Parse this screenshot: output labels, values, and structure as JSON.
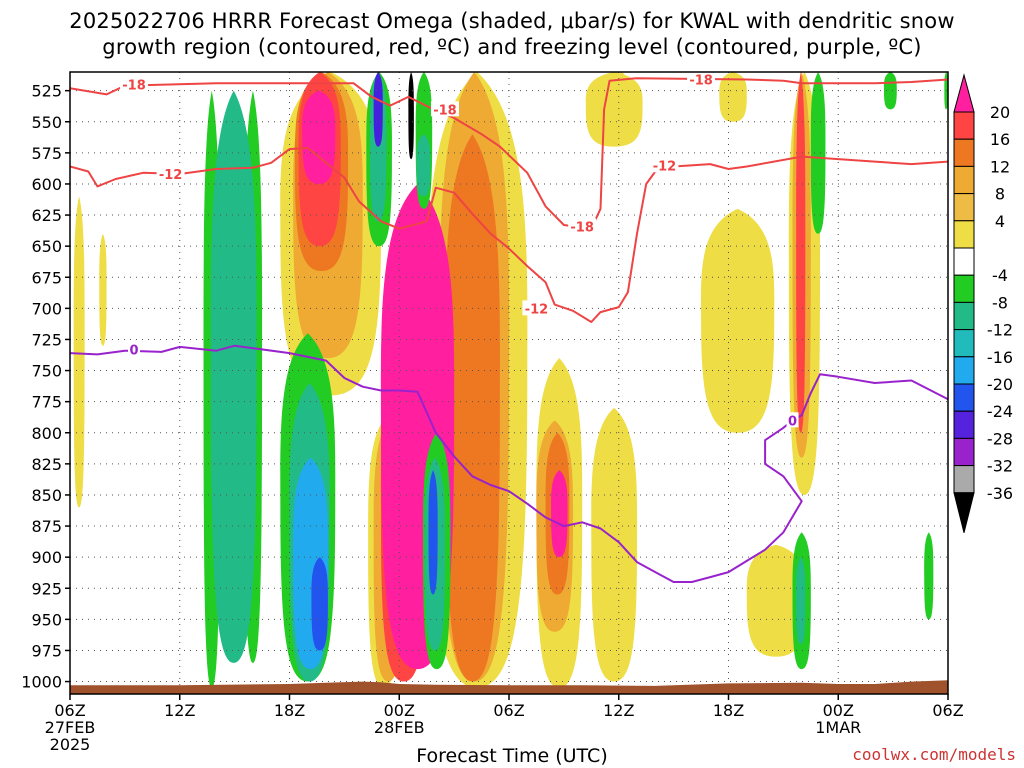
{
  "chart_data": {
    "type": "heatmap",
    "title_line1": "2025022706 HRRR Forecast Omega (shaded, μbar/s) for KWAL with dendritic snow",
    "title_line2": "growth region (contoured, red, ºC) and freezing level (contoured, purple, ºC)",
    "xlabel": "Forecast Time (UTC)",
    "credit": "coolwx.com/models",
    "y_axis": {
      "ticks": [
        525,
        550,
        575,
        600,
        625,
        650,
        675,
        700,
        725,
        750,
        775,
        800,
        825,
        850,
        875,
        900,
        925,
        950,
        975,
        1000
      ],
      "range": [
        510,
        1010
      ]
    },
    "x_axis": {
      "ticks": [
        {
          "h": 0,
          "lines": [
            "06Z",
            "27FEB",
            "2025"
          ]
        },
        {
          "h": 6,
          "lines": [
            "12Z"
          ]
        },
        {
          "h": 12,
          "lines": [
            "18Z"
          ]
        },
        {
          "h": 18,
          "lines": [
            "00Z",
            "28FEB"
          ]
        },
        {
          "h": 24,
          "lines": [
            "06Z"
          ]
        },
        {
          "h": 30,
          "lines": [
            "12Z"
          ]
        },
        {
          "h": 36,
          "lines": [
            "18Z"
          ]
        },
        {
          "h": 42,
          "lines": [
            "00Z",
            "1MAR"
          ]
        },
        {
          "h": 48,
          "lines": [
            "06Z"
          ]
        }
      ],
      "range_hours": [
        0,
        48
      ]
    },
    "colorbar": {
      "labels": [
        20,
        16,
        12,
        8,
        4,
        -4,
        -8,
        -12,
        -16,
        -20,
        -24,
        -28,
        -32,
        -36
      ],
      "colors": [
        "#ff3399",
        "#ff4444",
        "#ee7722",
        "#ee9933",
        "#eebb33",
        "#eedd44",
        "#ffffff",
        "#22cc22",
        "#22bb77",
        "#22bbbb",
        "#2299ee",
        "#2244dd",
        "#7722cc",
        "#aa22cc",
        "#aaaaaa",
        "#000000"
      ]
    },
    "series": [
      {
        "name": "-18",
        "color": "#ee4444",
        "points": [
          [
            0,
            523
          ],
          [
            2,
            528
          ],
          [
            3,
            521
          ],
          [
            8,
            519
          ],
          [
            14,
            519
          ],
          [
            15.5,
            519
          ],
          [
            16.5,
            530
          ],
          [
            17.5,
            537
          ],
          [
            18.5,
            530
          ],
          [
            20,
            541
          ],
          [
            21,
            547
          ],
          [
            22.5,
            560
          ],
          [
            23.5,
            570
          ],
          [
            25,
            591
          ],
          [
            26,
            618
          ],
          [
            27,
            633
          ],
          [
            28.5,
            636
          ],
          [
            29,
            620
          ],
          [
            29.2,
            540
          ],
          [
            29.5,
            517
          ],
          [
            31,
            515
          ],
          [
            37,
            516
          ],
          [
            39,
            517
          ],
          [
            40,
            519
          ],
          [
            44,
            519
          ],
          [
            46,
            518
          ],
          [
            48,
            516
          ]
        ]
      },
      {
        "name": "-12",
        "color": "#ee4444",
        "points": [
          [
            0,
            586
          ],
          [
            1,
            590
          ],
          [
            1.5,
            602
          ],
          [
            2.5,
            596
          ],
          [
            4,
            591
          ],
          [
            6,
            592
          ],
          [
            8,
            588
          ],
          [
            10,
            587
          ],
          [
            11,
            583
          ],
          [
            12,
            572
          ],
          [
            13,
            571
          ],
          [
            14,
            583
          ],
          [
            15,
            595
          ],
          [
            15.8,
            614
          ],
          [
            17,
            630
          ],
          [
            18,
            636
          ],
          [
            19.5,
            630
          ],
          [
            20,
            603
          ],
          [
            21,
            607
          ],
          [
            22,
            624
          ],
          [
            23,
            640
          ],
          [
            24,
            652
          ],
          [
            25,
            666
          ],
          [
            26,
            679
          ],
          [
            26.5,
            697
          ],
          [
            27.5,
            702
          ],
          [
            28.5,
            711
          ],
          [
            29,
            703
          ],
          [
            30,
            699
          ],
          [
            30.5,
            687
          ],
          [
            31,
            640
          ],
          [
            31.5,
            600
          ],
          [
            32,
            590
          ],
          [
            33,
            586
          ],
          [
            35,
            584
          ],
          [
            36,
            588
          ],
          [
            37,
            586
          ],
          [
            40,
            578
          ],
          [
            42,
            580
          ],
          [
            44,
            582
          ],
          [
            46,
            584
          ],
          [
            48,
            582
          ]
        ]
      },
      {
        "name": "0",
        "color": "#9922cc",
        "points": [
          [
            0,
            736
          ],
          [
            1.5,
            737
          ],
          [
            3,
            734
          ],
          [
            5,
            735
          ],
          [
            6,
            731
          ],
          [
            8,
            734
          ],
          [
            9,
            730
          ],
          [
            12,
            736
          ],
          [
            13,
            739
          ],
          [
            14,
            742
          ],
          [
            15,
            756
          ],
          [
            16,
            763
          ],
          [
            17,
            766
          ],
          [
            18,
            766
          ],
          [
            19,
            767
          ],
          [
            20,
            800
          ],
          [
            21,
            819
          ],
          [
            22,
            835
          ],
          [
            23,
            842
          ],
          [
            24,
            847
          ],
          [
            25,
            857
          ],
          [
            26,
            868
          ],
          [
            27,
            875
          ],
          [
            28,
            872
          ],
          [
            29,
            877
          ],
          [
            30,
            888
          ],
          [
            31,
            904
          ],
          [
            32,
            912
          ],
          [
            33,
            920
          ],
          [
            34,
            920
          ],
          [
            35,
            916
          ],
          [
            36,
            912
          ],
          [
            37,
            903
          ],
          [
            38,
            894
          ],
          [
            39,
            880
          ],
          [
            40,
            855
          ],
          [
            39,
            835
          ],
          [
            38,
            825
          ],
          [
            38,
            806
          ],
          [
            39,
            796
          ],
          [
            39.5,
            790
          ],
          [
            40,
            786
          ],
          [
            40.5,
            768
          ],
          [
            41,
            753
          ],
          [
            42,
            755
          ],
          [
            44,
            760
          ],
          [
            46,
            758
          ],
          [
            48,
            773
          ]
        ]
      }
    ],
    "contour_labels": [
      {
        "text": "-18",
        "x": 3.5,
        "y": 520,
        "series": "-18"
      },
      {
        "text": "-18",
        "x": 20.5,
        "y": 540,
        "series": "-18"
      },
      {
        "text": "-18",
        "x": 28,
        "y": 634,
        "series": "-18"
      },
      {
        "text": "-18",
        "x": 34.5,
        "y": 516,
        "series": "-18"
      },
      {
        "text": "-12",
        "x": 5.5,
        "y": 592,
        "series": "-12"
      },
      {
        "text": "-12",
        "x": 25.5,
        "y": 700,
        "series": "-12"
      },
      {
        "text": "-12",
        "x": 32.5,
        "y": 585,
        "series": "-12"
      },
      {
        "text": "0",
        "x": 3.5,
        "y": 733,
        "series": "0"
      },
      {
        "text": "0",
        "x": 39.5,
        "y": 790,
        "series": "0"
      }
    ],
    "shading_blobs": [
      {
        "level": "-8",
        "h0": 7.3,
        "h1": 8.2,
        "p0": 525,
        "p1": 1005
      },
      {
        "level": "-8",
        "h0": 9.5,
        "h1": 10.5,
        "p0": 525,
        "p1": 985
      },
      {
        "level": "-8",
        "h0": 11.5,
        "h1": 14.5,
        "p0": 720,
        "p1": 1000
      },
      {
        "level": "-12",
        "h0": 7.7,
        "h1": 10.2,
        "p0": 525,
        "p1": 985
      },
      {
        "level": "-12",
        "h0": 12,
        "h1": 14.2,
        "p0": 760,
        "p1": 1000
      },
      {
        "level": "-16",
        "h0": 12.2,
        "h1": 14.1,
        "p0": 820,
        "p1": 990
      },
      {
        "level": "-20",
        "h0": 13.2,
        "h1": 14.1,
        "p0": 900,
        "p1": 975
      },
      {
        "level": "4",
        "h0": 0.2,
        "h1": 0.8,
        "p0": 610,
        "p1": 860
      },
      {
        "level": "4",
        "h0": 1.6,
        "h1": 2,
        "p0": 640,
        "p1": 730
      },
      {
        "level": "4",
        "h0": 11.5,
        "h1": 17,
        "p0": 510,
        "p1": 770
      },
      {
        "level": "4",
        "h0": 16.3,
        "h1": 18,
        "p0": 790,
        "p1": 1005
      },
      {
        "level": "4",
        "h0": 19.5,
        "h1": 25,
        "p0": 510,
        "p1": 1005
      },
      {
        "level": "4",
        "h0": 25.5,
        "h1": 28,
        "p0": 740,
        "p1": 1005
      },
      {
        "level": "4",
        "h0": 28.2,
        "h1": 31.3,
        "p0": 510,
        "p1": 570
      },
      {
        "level": "4",
        "h0": 28.5,
        "h1": 31,
        "p0": 780,
        "p1": 1000
      },
      {
        "level": "4",
        "h0": 37,
        "h1": 40.2,
        "p0": 890,
        "p1": 980
      },
      {
        "level": "4",
        "h0": 34.5,
        "h1": 38.5,
        "p0": 620,
        "p1": 800
      },
      {
        "level": "8",
        "h0": 12.2,
        "h1": 16,
        "p0": 510,
        "p1": 740
      },
      {
        "level": "8",
        "h0": 16.6,
        "h1": 18.2,
        "p0": 790,
        "p1": 1000
      },
      {
        "level": "8",
        "h0": 20.2,
        "h1": 24,
        "p0": 510,
        "p1": 1000
      },
      {
        "level": "8",
        "h0": 25.5,
        "h1": 27.5,
        "p0": 790,
        "p1": 960
      },
      {
        "level": "12",
        "h0": 12.3,
        "h1": 15.2,
        "p0": 510,
        "p1": 670
      },
      {
        "level": "12",
        "h0": 20.5,
        "h1": 23.5,
        "p0": 560,
        "p1": 1000
      },
      {
        "level": "12",
        "h0": 26,
        "h1": 27.3,
        "p0": 800,
        "p1": 930
      },
      {
        "level": "16",
        "h0": 12.5,
        "h1": 14.8,
        "p0": 510,
        "p1": 650
      },
      {
        "level": "16",
        "h0": 17,
        "h1": 19.5,
        "p0": 740,
        "p1": 1000
      },
      {
        "level": "20",
        "h0": 12.7,
        "h1": 14.5,
        "p0": 525,
        "p1": 600
      },
      {
        "level": "20",
        "h0": 17,
        "h1": 21,
        "p0": 600,
        "p1": 990
      },
      {
        "level": "20",
        "h0": 26.3,
        "h1": 27.2,
        "p0": 830,
        "p1": 900
      },
      {
        "level": "-8",
        "h0": 16.2,
        "h1": 17.6,
        "p0": 510,
        "p1": 650
      },
      {
        "level": "-12",
        "h0": 16.4,
        "h1": 17.3,
        "p0": 510,
        "p1": 630
      },
      {
        "level": "-24",
        "h0": 16.6,
        "h1": 17.1,
        "p0": 510,
        "p1": 570
      },
      {
        "level": "-36",
        "h0": 18.5,
        "h1": 18.8,
        "p0": 510,
        "p1": 580
      },
      {
        "level": "-8",
        "h0": 18.9,
        "h1": 19.8,
        "p0": 510,
        "p1": 620
      },
      {
        "level": "-12",
        "h0": 18.95,
        "h1": 19.7,
        "p0": 560,
        "p1": 610
      },
      {
        "level": "-8",
        "h0": 19.3,
        "h1": 20.8,
        "p0": 800,
        "p1": 990
      },
      {
        "level": "-12",
        "h0": 19.4,
        "h1": 20.5,
        "p0": 820,
        "p1": 975
      },
      {
        "level": "-20",
        "h0": 19.6,
        "h1": 20.1,
        "p0": 830,
        "p1": 930
      },
      {
        "level": "4",
        "h0": 39.3,
        "h1": 41,
        "p0": 510,
        "p1": 850
      },
      {
        "level": "8",
        "h0": 39.5,
        "h1": 40.5,
        "p0": 510,
        "p1": 820
      },
      {
        "level": "16",
        "h0": 39.7,
        "h1": 40.2,
        "p0": 510,
        "p1": 800
      },
      {
        "level": "-8",
        "h0": 40.5,
        "h1": 41.3,
        "p0": 510,
        "p1": 640
      },
      {
        "level": "-8",
        "h0": 39.5,
        "h1": 40.5,
        "p0": 880,
        "p1": 990
      },
      {
        "level": "-12",
        "h0": 39.7,
        "h1": 40.2,
        "p0": 900,
        "p1": 970
      },
      {
        "level": "-8",
        "h0": 44.5,
        "h1": 45.2,
        "p0": 510,
        "p1": 540
      },
      {
        "level": "-8",
        "h0": 47.8,
        "h1": 48,
        "p0": 510,
        "p1": 540
      },
      {
        "level": "-8",
        "h0": 46.7,
        "h1": 47.2,
        "p0": 880,
        "p1": 950
      },
      {
        "level": "4",
        "h0": 35.5,
        "h1": 37,
        "p0": 510,
        "p1": 550
      },
      {
        "level": "4",
        "h0": 29.8,
        "h1": 30.5,
        "p0": 510,
        "p1": 550
      }
    ],
    "terrain_color": "#a0522d",
    "grid": true
  }
}
